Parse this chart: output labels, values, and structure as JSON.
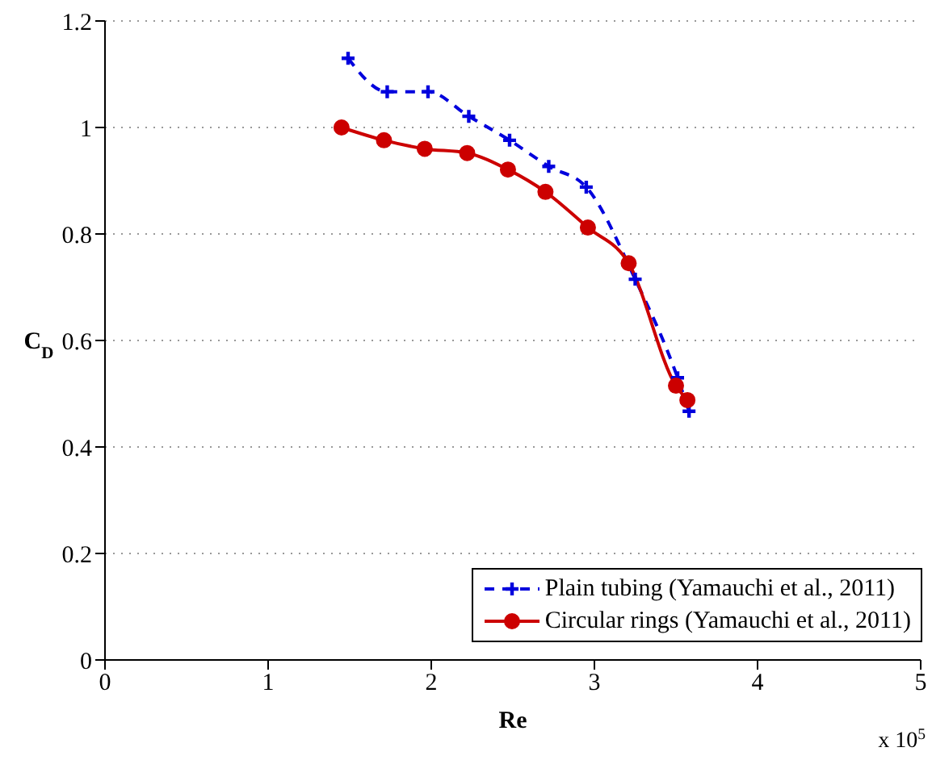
{
  "chart_data": {
    "type": "line",
    "xlabel": "Re",
    "ylabel": "C$_{D}$",
    "annotations": [
      "x 10$^{5}$"
    ],
    "xlim": [
      0,
      5
    ],
    "xticks": [
      0,
      1,
      2,
      3,
      4,
      5
    ],
    "ylim": [
      0,
      1.2
    ],
    "yticks": [
      0,
      0.2,
      0.4,
      0.6,
      0.8,
      1,
      1.2
    ],
    "grid": "y",
    "legend": "bottom right",
    "series": [
      {
        "name": "Plain tubing (Yamauchi et al., 2011)",
        "color": "#0000dd",
        "marker": "cross",
        "line_style": "dashed",
        "x": [
          1.49,
          1.73,
          1.98,
          2.23,
          2.48,
          2.72,
          2.95,
          3.25,
          3.51,
          3.58
        ],
        "values": [
          1.13,
          1.067,
          1.067,
          1.021,
          0.976,
          0.927,
          0.888,
          0.715,
          0.53,
          0.467
        ]
      },
      {
        "name": "Circular rings (Yamauchi et al., 2011)",
        "color": "#cc0000",
        "marker": "circle",
        "line_style": "solid",
        "x": [
          1.45,
          1.71,
          1.96,
          2.22,
          2.47,
          2.7,
          2.96,
          3.21,
          3.5,
          3.57
        ],
        "values": [
          1.0,
          0.976,
          0.96,
          0.952,
          0.921,
          0.879,
          0.812,
          0.745,
          0.515,
          0.488
        ]
      }
    ]
  }
}
